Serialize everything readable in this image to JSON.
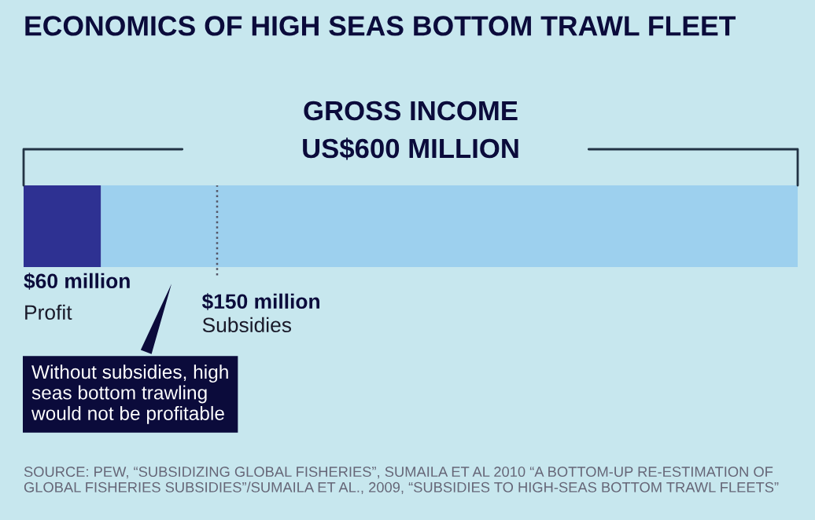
{
  "chart_data": {
    "type": "bar",
    "orientation": "horizontal",
    "stacked": true,
    "title": "ECONOMICS OF HIGH SEAS BOTTOM TRAWL FLEET",
    "categories": [
      null
    ],
    "xlim": [
      0,
      600
    ],
    "tick_labels": false,
    "series": [
      {
        "name": "Profit",
        "color": "#2e3192",
        "values": [
          60
        ],
        "value_labels": [
          "$60 million"
        ]
      },
      {
        "color": "#9dd0ee",
        "values": [
          540
        ]
      }
    ],
    "totals": [
      "US$600 MILLION"
    ],
    "ref_lines": [
      {
        "axis": "x",
        "value": 150,
        "label": "$150 million\nSubsidies",
        "line_style": "dotted",
        "color": "#555566"
      }
    ],
    "annotations": [
      "GROSS INCOME",
      "Without subsidies, high seas bottom trawling would not be profitable",
      "SOURCE: PEW, “SUBSIDIZING GLOBAL FISHERIES”, SUMAILA ET AL 2010 “A BOTTOM-UP RE-ESTIMATION OF GLOBAL FISHERIES SUBSIDIES”/SUMAILA ET AL., 2009, “SUBSIDIES TO HIGH-SEAS BOTTOM TRAWL FLEETS”"
    ]
  }
}
